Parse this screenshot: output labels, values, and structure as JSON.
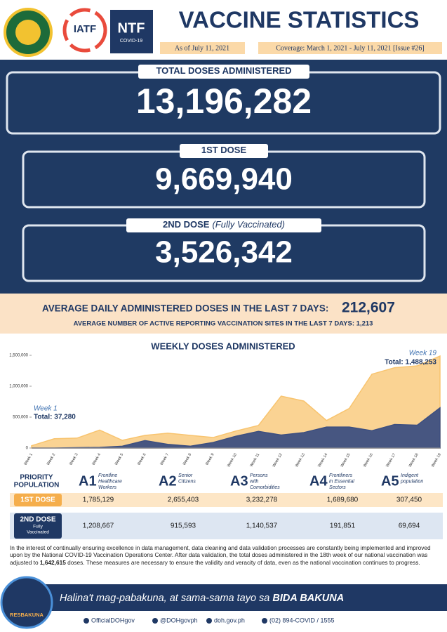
{
  "header": {
    "logos": [
      "IATF",
      "NTF",
      "COVID-19"
    ],
    "title": "VACCINE STATISTICS",
    "as_of": "As of July 11, 2021",
    "coverage": "Coverage: March 1, 2021 - July 11, 2021 [Issue #26]"
  },
  "totals": [
    {
      "label": "TOTAL DOSES ADMINISTERED",
      "value": "13,196,282"
    },
    {
      "label": "1ST DOSE",
      "value": "9,669,940"
    },
    {
      "label": "2ND DOSE",
      "label_note": "(Fully Vaccinated)",
      "value": "3,526,342"
    }
  ],
  "averages": {
    "daily_label": "AVERAGE DAILY ADMINISTERED DOSES IN THE LAST 7 DAYS:",
    "daily_value": "212,607",
    "sites": "AVERAGE NUMBER OF ACTIVE REPORTING VACCINATION SITES IN THE LAST 7 DAYS: 1,213"
  },
  "chart_data": {
    "type": "area",
    "title": "WEEKLY DOSES ADMINISTERED",
    "categories": [
      "Week 1",
      "Week 2",
      "Week 3",
      "Week 4",
      "Week 5",
      "Week 6",
      "Week 7",
      "Week 8",
      "Week 9",
      "Week 10",
      "Week 11",
      "Week 12",
      "Week 13",
      "Week 14",
      "Week 15",
      "Week 16",
      "Week 17",
      "Week 18",
      "Week 19"
    ],
    "series": [
      {
        "color": "#f8c46f",
        "values": [
          37280,
          150000,
          160000,
          290000,
          125000,
          205000,
          240000,
          205000,
          170000,
          275000,
          365000,
          840000,
          760000,
          445000,
          640000,
          1195000,
          1300000,
          1330000,
          1488253
        ]
      },
      {
        "color": "#3d4f80",
        "values": [
          0,
          0,
          5000,
          10000,
          30000,
          120000,
          60000,
          30000,
          90000,
          190000,
          270000,
          210000,
          250000,
          340000,
          340000,
          280000,
          380000,
          370000,
          650000
        ]
      }
    ],
    "ylim": [
      0,
      1500000
    ],
    "yticks": [
      0,
      {
        "value": 500000,
        "label": "500,000"
      },
      {
        "value": 1000000,
        "label": "1,000,000"
      },
      {
        "value": 1500000,
        "label": "1,500,000"
      }
    ],
    "annotations": [
      {
        "week": "Week 1",
        "text": "Total: 37,280"
      },
      {
        "week": "Week 19",
        "text": "Total: 1,488,253"
      }
    ]
  },
  "priority": {
    "header": [
      "PRIORITY",
      "POPULATION"
    ],
    "groups": [
      {
        "code": "A1",
        "desc": [
          "Frontline",
          "Healthcare",
          "Workers"
        ]
      },
      {
        "code": "A2",
        "desc": [
          "Senior",
          "Citizens"
        ]
      },
      {
        "code": "A3",
        "desc": [
          "Persons",
          "with",
          "Comorbidities"
        ]
      },
      {
        "code": "A4",
        "desc": [
          "Frontliners",
          "in Essential",
          "Sectors"
        ]
      },
      {
        "code": "A5",
        "desc": [
          "Indigent",
          "population"
        ]
      }
    ],
    "rows": [
      {
        "label": "1ST DOSE",
        "sub": [],
        "values": [
          "1,785,129",
          "2,655,403",
          "3,232,278",
          "1,689,680",
          "307,450"
        ]
      },
      {
        "label": "2ND DOSE",
        "sub": [
          "Fully",
          "Vaccinated"
        ],
        "values": [
          "1,208,667",
          "915,593",
          "1,140,537",
          "191,851",
          "69,694"
        ]
      }
    ]
  },
  "note": [
    "In the interest of continually ensuring excellence in data management, data cleaning and data validation processes are constantly being implemented and improved upon by the National COVID-19 Vaccination Operations Center. After data validation, the total doses administered in the 18th week of our national vaccination was adjusted to ",
    "1,642,615",
    " doses. These measures are necessary to ensure the validity and veracity of data, even as the national vaccination continues to progress."
  ],
  "footer": {
    "badge": "RESBAKUNA",
    "slogan": "Halina't mag-pabakuna, at sama-sama tayo sa ",
    "slogan_bold": "BIDA BAKUNA",
    "social": [
      "OfficialDOHgov",
      "@DOHgovph",
      "doh.gov.ph",
      "(02) 894-COVID / 1555"
    ]
  }
}
